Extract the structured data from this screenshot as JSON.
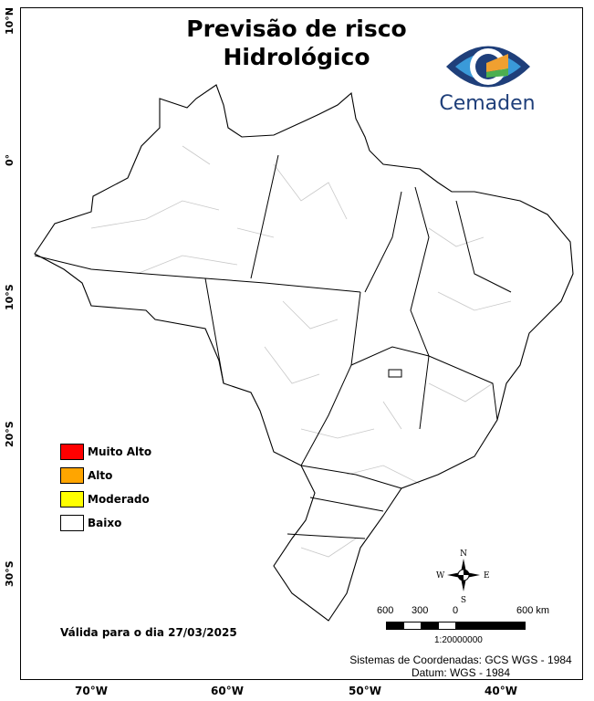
{
  "title_line1": "Previsão de risco",
  "title_line2": "Hidrológico",
  "logo": {
    "text": "Cemaden",
    "colors": [
      "#1f3f7a",
      "#3a9ad9",
      "#f0a030",
      "#4caf50"
    ]
  },
  "axes": {
    "lat_labels": [
      "10°N",
      "0°",
      "10°S",
      "20°S",
      "30°S"
    ],
    "lon_labels": [
      "70°W",
      "60°W",
      "50°W",
      "40°W"
    ]
  },
  "legend": [
    {
      "label": "Muito Alto",
      "color": "#ff0000"
    },
    {
      "label": "Alto",
      "color": "#ffa500"
    },
    {
      "label": "Moderado",
      "color": "#ffff00"
    },
    {
      "label": "Baixo",
      "color": "#ffffff"
    }
  ],
  "valid_text": "Válida para o dia 27/03/2025",
  "compass": {
    "n": "N",
    "s": "S",
    "e": "E",
    "w": "W"
  },
  "scale": {
    "labels": [
      "600",
      "300",
      "0",
      "600 km"
    ],
    "ratio": "1:20000000"
  },
  "footer": {
    "crs": "Sistemas de Coordenadas: GCS WGS - 1984",
    "datum": "Datum: WGS - 1984"
  }
}
